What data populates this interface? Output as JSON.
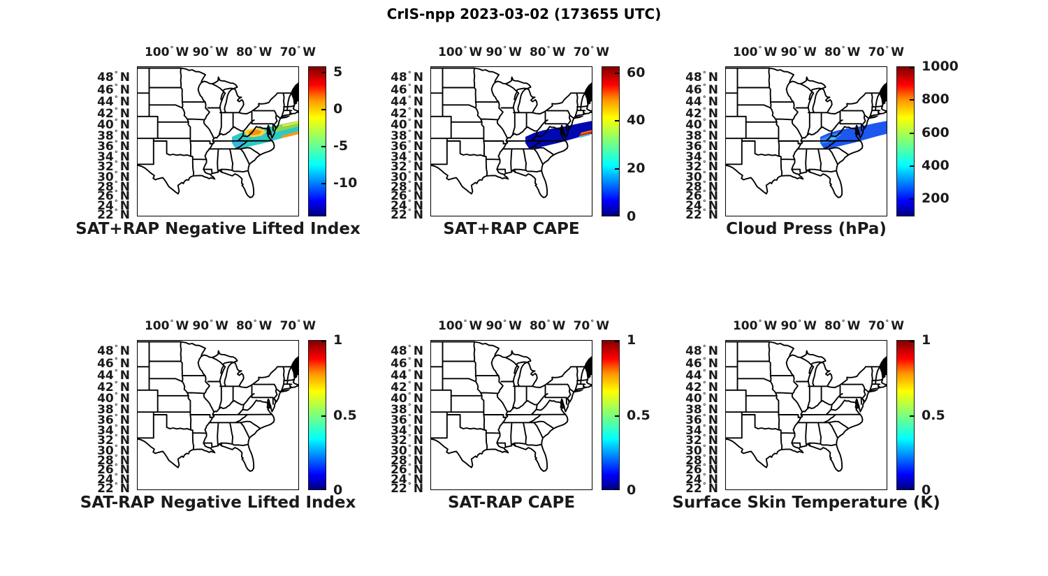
{
  "figure_title": "CrIS-npp 2023-03-02 (173655 UTC)",
  "axes": {
    "lon_ticks": [
      "100",
      "90",
      "80",
      "70"
    ],
    "lon_dir": "W",
    "lat_ticks": [
      "48",
      "46",
      "44",
      "42",
      "40",
      "38",
      "36",
      "34",
      "32",
      "30",
      "28",
      "26",
      "24",
      "22"
    ],
    "lat_dir": "N",
    "degree": "°"
  },
  "panels": [
    {
      "id": "sat-plus-rap-nli",
      "title": "SAT+RAP Negative Lifted Index",
      "overlay": "lifted-index-swath",
      "colorbar": {
        "min": -14.5,
        "max": 5.8,
        "tick_values": [
          5,
          0,
          -5,
          -10
        ],
        "tick_labels": [
          "5",
          "0",
          "-5",
          "-10"
        ]
      }
    },
    {
      "id": "sat-plus-rap-cape",
      "title": "SAT+RAP CAPE",
      "overlay": "cape-swath",
      "colorbar": {
        "min": 0,
        "max": 62.5,
        "tick_values": [
          0,
          20,
          40,
          60
        ],
        "tick_labels": [
          "0",
          "20",
          "40",
          "60"
        ]
      }
    },
    {
      "id": "cloud-press",
      "title": "Cloud Press (hPa)",
      "overlay": "cloud-press-swath",
      "colorbar": {
        "min": 91,
        "max": 1000,
        "tick_values": [
          200,
          400,
          600,
          800,
          1000
        ],
        "tick_labels": [
          "200",
          "400",
          "600",
          "800",
          "1000"
        ]
      }
    },
    {
      "id": "sat-minus-rap-nli",
      "title": "SAT-RAP Negative Lifted Index",
      "overlay": null,
      "colorbar": {
        "min": 0,
        "max": 1,
        "tick_values": [
          0,
          0.5,
          1
        ],
        "tick_labels": [
          "0",
          "0.5",
          "1"
        ]
      }
    },
    {
      "id": "sat-minus-rap-cape",
      "title": "SAT-RAP CAPE",
      "overlay": null,
      "colorbar": {
        "min": 0,
        "max": 1,
        "tick_values": [
          0,
          0.5,
          1
        ],
        "tick_labels": [
          "0",
          "0.5",
          "1"
        ]
      }
    },
    {
      "id": "surface-skin-temp",
      "title": "Surface Skin Temperature (K)",
      "overlay": null,
      "colorbar": {
        "min": 0,
        "max": 1,
        "tick_values": [
          0,
          0.5,
          1
        ],
        "tick_labels": [
          "0",
          "0.5",
          "1"
        ]
      }
    }
  ],
  "colors": {
    "colormap": "jet",
    "nli_swath_cyan": "#2fc9c4",
    "nli_swath_orange": "#f29211",
    "cape_swath_navy": "#0009b0",
    "cape_swath_red": "#e02800",
    "cloud_press_swath_blue": "#1c57f0"
  },
  "chart_data": {
    "type": "heatmap",
    "title": "CrIS-npp 2023-03-02 (173655 UTC)",
    "layout": "2 rows x 3 columns of identical eastern-US state-outline maps (approx lon 107W-70W, lat 21N-49.3N, Mercator-like spacing), each with a vertical jet colorbar on the right",
    "colormap": "jet",
    "x_ticks": [
      "100°W",
      "90°W",
      "80°W",
      "70°W"
    ],
    "y_ticks": [
      "48°N",
      "46°N",
      "44°N",
      "42°N",
      "40°N",
      "38°N",
      "36°N",
      "34°N",
      "32°N",
      "30°N",
      "28°N",
      "26°N",
      "24°N",
      "22°N"
    ],
    "panels": [
      {
        "title": "SAT+RAP Negative Lifted Index",
        "colorbar_ticks": [
          5,
          0,
          -5,
          -10
        ],
        "colorbar_range": [
          -14.5,
          5.8
        ],
        "data": "diagonal satellite swath from Virginia/North Carolina extending NE offshore to the map edge; mostly -3 to -6 (cyan/green) with a 0 to +2 (yellow/orange) patch over Virginia and an orange streak (~0) along the SE band edge offshore"
      },
      {
        "title": "SAT+RAP CAPE",
        "colorbar_ticks": [
          0,
          20,
          40,
          60
        ],
        "colorbar_range": [
          0,
          62.5
        ],
        "data": "same swath footprint; CAPE near 0 (dark navy) everywhere except a thin 40-60 (orange/red) streak near the SE edge of the band offshore"
      },
      {
        "title": "Cloud Press (hPa)",
        "colorbar_ticks": [
          200,
          400,
          600,
          800,
          1000
        ],
        "colorbar_range": [
          91,
          1000
        ],
        "data": "same swath footprint; cloud-top pressure ~200-350 hPa (royal blue) with slightly lighter blue/cyan (~350-400 hPa) at the SW end over land"
      },
      {
        "title": "SAT-RAP Negative Lifted Index",
        "colorbar_ticks": [
          0,
          0.5,
          1
        ],
        "colorbar_range": [
          0,
          1
        ],
        "data": "empty map, no swath plotted"
      },
      {
        "title": "SAT-RAP CAPE",
        "colorbar_ticks": [
          0,
          0.5,
          1
        ],
        "colorbar_range": [
          0,
          1
        ],
        "data": "empty map, no swath plotted"
      },
      {
        "title": "Surface Skin Temperature (K)",
        "colorbar_ticks": [
          0,
          0.5,
          1
        ],
        "colorbar_range": [
          0,
          1
        ],
        "data": "empty map, no swath plotted"
      }
    ]
  }
}
